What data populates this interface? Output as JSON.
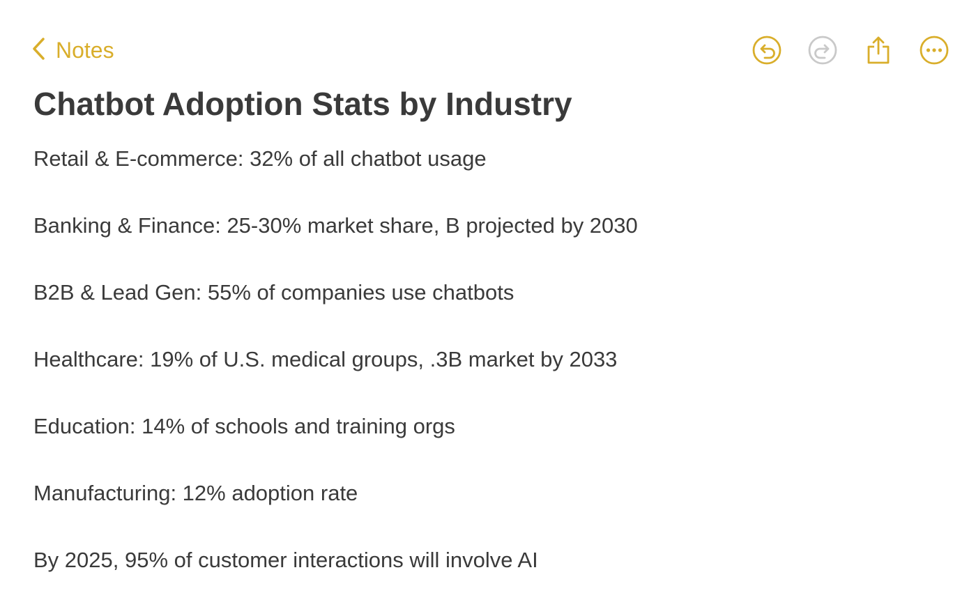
{
  "toolbar": {
    "back_label": "Notes",
    "icons": {
      "back": "chevron-left-icon",
      "undo": "undo-icon",
      "redo": "redo-icon",
      "share": "share-icon",
      "more": "ellipsis-circle-icon"
    },
    "accent_color": "#d9ae2b",
    "disabled_color": "#c9c9c9"
  },
  "note": {
    "title": "Chatbot Adoption Stats by Industry",
    "lines": [
      "Retail & E-commerce: 32% of all chatbot usage",
      "Banking & Finance: 25-30% market share, B projected by 2030",
      "B2B & Lead Gen: 55% of companies use chatbots",
      "Healthcare: 19% of U.S. medical groups, .3B market by 2033",
      "Education: 14% of schools and training orgs",
      "Manufacturing: 12% adoption rate",
      "By 2025, 95% of customer interactions will involve AI"
    ]
  }
}
